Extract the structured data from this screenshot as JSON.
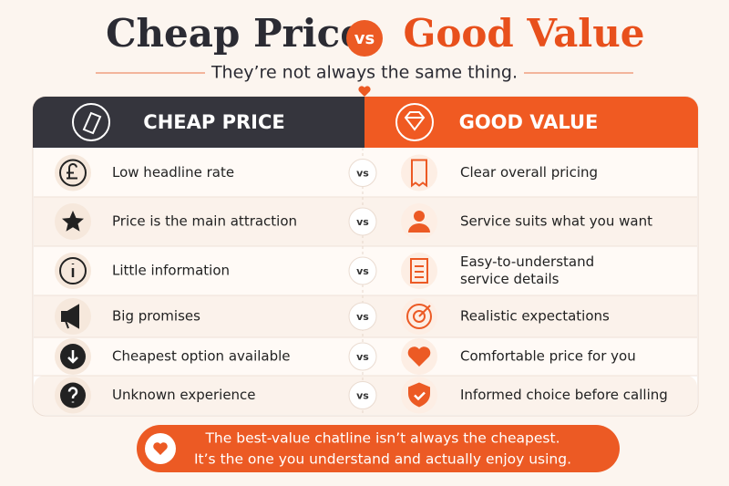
{
  "title": {
    "left": "Cheap Price",
    "vs": "vs",
    "right": "Good Value"
  },
  "subtitle": "They’re not always the same thing.",
  "table": {
    "headers": {
      "left": "CHEAP PRICE",
      "right": "GOOD VALUE"
    },
    "rows": [
      {
        "left": "Low headline rate",
        "vs": "vs",
        "right": [
          "Clear overall pricing"
        ]
      },
      {
        "left": "Price is the main attraction",
        "vs": "vs",
        "right": [
          "Service suits what you want"
        ]
      },
      {
        "left": "Little information",
        "vs": "vs",
        "right": [
          "Easy-to-understand",
          "service details"
        ]
      },
      {
        "left": "Big promises",
        "vs": "vs",
        "right": [
          "Realistic expectations"
        ]
      },
      {
        "left": "Cheapest option available",
        "vs": "vs",
        "right": [
          "Comfortable price for you"
        ]
      },
      {
        "left": "Unknown experience",
        "vs": "vs",
        "right": [
          "Informed choice before calling"
        ]
      }
    ]
  },
  "footer": {
    "lines": [
      "The best-value chatline isn’t always the cheapest.",
      "It’s the one you understand and actually enjoy using."
    ]
  }
}
